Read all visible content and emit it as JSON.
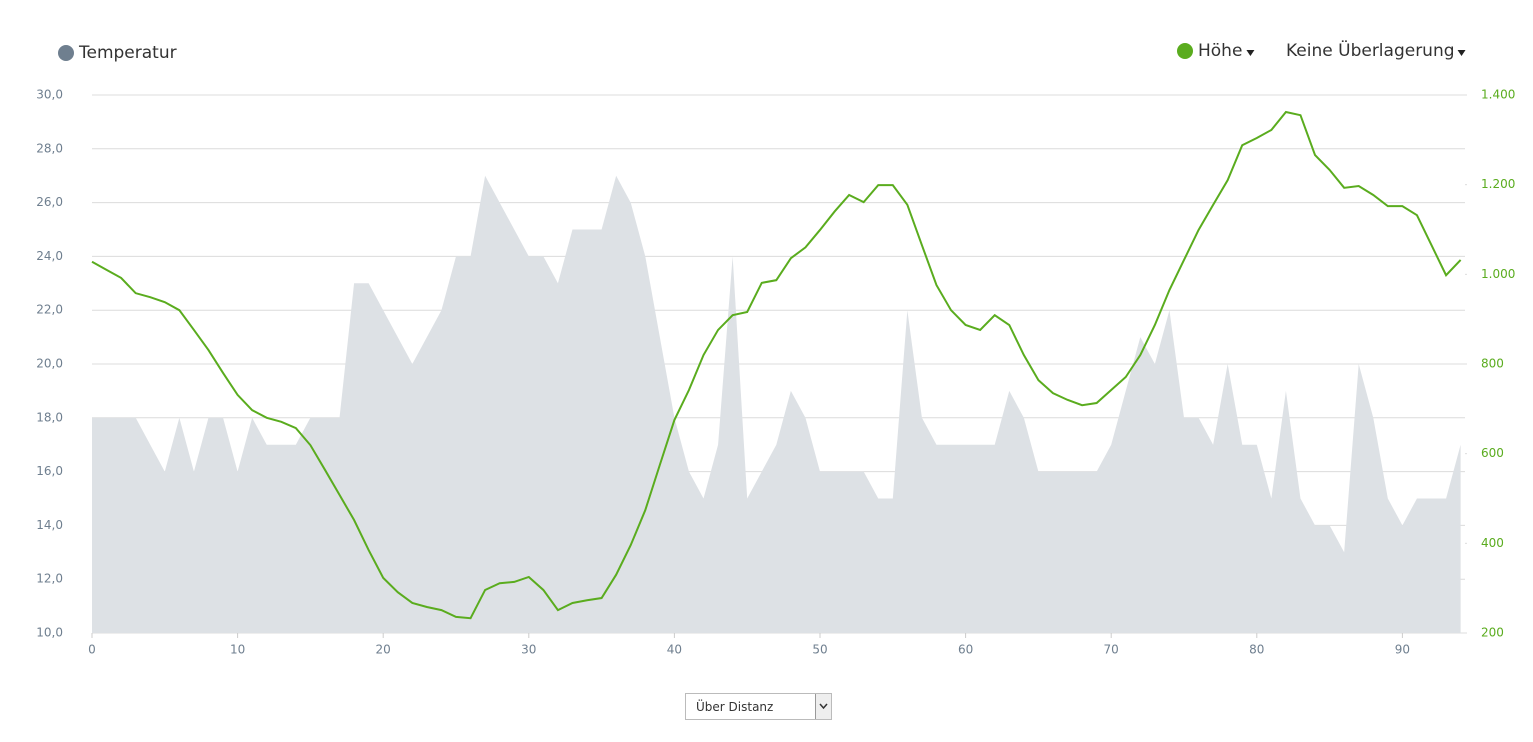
{
  "chart_data": {
    "type": "line",
    "x": [
      0,
      1,
      2,
      3,
      4,
      5,
      6,
      7,
      8,
      9,
      10,
      11,
      12,
      13,
      14,
      15,
      16,
      17,
      18,
      19,
      20,
      21,
      22,
      23,
      24,
      25,
      26,
      27,
      28,
      29,
      30,
      31,
      32,
      33,
      34,
      35,
      36,
      37,
      38,
      39,
      40,
      41,
      42,
      43,
      44,
      45,
      46,
      47,
      48,
      49,
      50,
      51,
      52,
      53,
      54,
      55,
      56,
      57,
      58,
      59,
      60,
      61,
      62,
      63,
      64,
      65,
      66,
      67,
      68,
      69,
      70,
      71,
      72,
      73,
      74,
      75,
      76,
      77,
      78,
      79,
      80,
      81,
      82,
      83,
      84,
      85,
      86,
      87,
      88,
      89,
      90,
      91,
      92,
      93,
      94
    ],
    "series": [
      {
        "name": "Temperatur",
        "color": "#dde1e5",
        "legend_color": "#6f7f8f",
        "kind": "area",
        "axis": "y",
        "values": [
          18,
          18,
          18,
          18,
          17,
          16,
          18,
          16,
          18,
          18,
          16,
          18,
          17,
          17,
          17,
          18,
          18,
          18,
          23,
          23,
          22,
          21,
          20,
          21,
          22,
          24,
          24,
          27,
          26,
          25,
          24,
          24,
          23,
          25,
          25,
          25,
          27,
          26,
          24,
          21,
          18,
          16,
          15,
          17,
          24,
          15,
          16,
          17,
          19,
          18,
          16,
          16,
          16,
          16,
          15,
          15,
          22,
          18,
          17,
          17,
          17,
          17,
          17,
          19,
          18,
          16,
          16,
          16,
          16,
          16,
          17,
          19,
          21,
          20,
          22,
          18,
          18,
          17,
          20,
          17,
          17,
          15,
          19,
          15,
          14,
          14,
          13,
          20,
          18,
          15,
          14,
          15,
          15,
          15,
          17
        ]
      },
      {
        "name": "Höhe",
        "color": "#5aac1e",
        "kind": "line",
        "axis": "y2",
        "values": [
          1028,
          1010,
          992,
          958,
          949,
          938,
          920,
          876,
          831,
          780,
          731,
          697,
          680,
          671,
          657,
          619,
          564,
          508,
          452,
          385,
          323,
          291,
          267,
          258,
          251,
          236,
          233,
          296,
          311,
          314,
          325,
          296,
          251,
          267,
          273,
          278,
          330,
          396,
          474,
          575,
          675,
          742,
          820,
          876,
          909,
          916,
          981,
          987,
          1036,
          1060,
          1099,
          1140,
          1177,
          1161,
          1199,
          1199,
          1155,
          1065,
          976,
          920,
          887,
          876,
          909,
          887,
          820,
          764,
          735,
          720,
          708,
          713,
          742,
          771,
          820,
          887,
          965,
          1032,
          1099,
          1155,
          1210,
          1288,
          1304,
          1322,
          1362,
          1355,
          1266,
          1233,
          1193,
          1197,
          1177,
          1152,
          1152,
          1132,
          1065,
          998,
          1032
        ]
      }
    ],
    "xlim": [
      0,
      94.3
    ],
    "xticks": [
      0,
      10,
      20,
      30,
      40,
      50,
      60,
      70,
      80,
      90
    ],
    "ylim": [
      10,
      30
    ],
    "yticks": [
      {
        "value": 10,
        "label": "10,0"
      },
      {
        "value": 12,
        "label": "12,0"
      },
      {
        "value": 14,
        "label": "14,0"
      },
      {
        "value": 16,
        "label": "16,0"
      },
      {
        "value": 18,
        "label": "18,0"
      },
      {
        "value": 20,
        "label": "20,0"
      },
      {
        "value": 22,
        "label": "22,0"
      },
      {
        "value": 24,
        "label": "24,0"
      },
      {
        "value": 26,
        "label": "26,0"
      },
      {
        "value": 28,
        "label": "28,0"
      },
      {
        "value": 30,
        "label": "30,0"
      }
    ],
    "y2lim": [
      200,
      1400
    ],
    "y2ticks": [
      200,
      400,
      600,
      800,
      {
        "value": 1000,
        "label": "1.000"
      },
      {
        "value": 1200,
        "label": "1.200"
      },
      {
        "value": 1400,
        "label": "1.400"
      }
    ],
    "grid": true,
    "overlay_label": "Keine Überlagerung"
  },
  "controls": {
    "x_mode": "Über Distanz"
  }
}
